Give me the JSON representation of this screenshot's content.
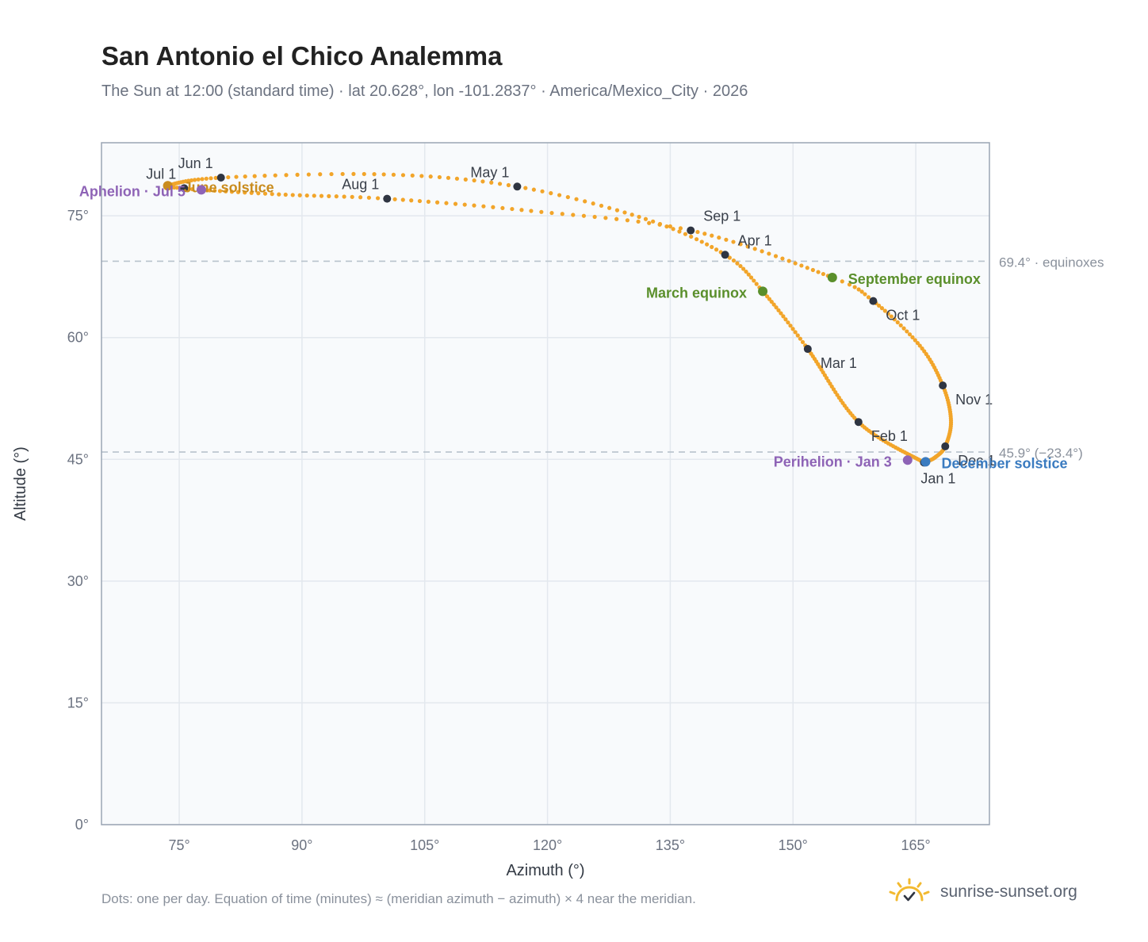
{
  "header": {
    "title": "San Antonio el Chico Analemma",
    "subtitle": "The Sun at 12:00 (standard time) · lat 20.628°, lon -101.2837° · America/Mexico_City · 2026"
  },
  "footer": {
    "note": "Dots: one per day. Equation of time (minutes) ≈ (meridian azimuth − azimuth) × 4 near the meridian.",
    "brand": "sunrise-sunset.org"
  },
  "colors": {
    "path": "#f2a52a",
    "month_dot": "#2f3542",
    "equinox": "#5a8f2b",
    "june_solstice": "#c98c1e",
    "december_solstice": "#3a7bc0",
    "apsis": "#8e63b6",
    "reference_line": "#b8c2cc",
    "grid": "#e3e8ee",
    "plot_bg": "#f8fafc",
    "frame": "#9aa5b4"
  },
  "chart_data": {
    "type": "scatter",
    "xlabel": "Azimuth (°)",
    "ylabel": "Altitude (°)",
    "xlim": [
      65.5,
      174
    ],
    "ylim": [
      0,
      84
    ],
    "xticks": [
      75,
      90,
      105,
      120,
      135,
      150,
      165
    ],
    "xtick_labels": [
      "75°",
      "90°",
      "105°",
      "120°",
      "135°",
      "150°",
      "165°"
    ],
    "yticks": [
      0,
      15,
      30,
      45,
      60,
      75
    ],
    "ytick_labels": [
      "0°",
      "15°",
      "30°",
      "45°",
      "60°",
      "75°"
    ],
    "grid": true,
    "analemma_keypoints": [
      {
        "day": 1,
        "az": 166.0,
        "alt": 44.6
      },
      {
        "day": 32,
        "az": 158.0,
        "alt": 49.6
      },
      {
        "day": 60,
        "az": 151.8,
        "alt": 58.6
      },
      {
        "day": 79,
        "az": 146.3,
        "alt": 65.7
      },
      {
        "day": 91,
        "az": 141.7,
        "alt": 70.2
      },
      {
        "day": 105,
        "az": 132.0,
        "alt": 74.6
      },
      {
        "day": 121,
        "az": 116.3,
        "alt": 78.6
      },
      {
        "day": 136,
        "az": 100.0,
        "alt": 80.1
      },
      {
        "day": 152,
        "az": 80.1,
        "alt": 79.7
      },
      {
        "day": 172,
        "az": 73.6,
        "alt": 78.7
      },
      {
        "day": 182,
        "az": 75.6,
        "alt": 78.4
      },
      {
        "day": 186,
        "az": 77.7,
        "alt": 78.2
      },
      {
        "day": 200,
        "az": 88.0,
        "alt": 77.6
      },
      {
        "day": 213,
        "az": 100.4,
        "alt": 77.1
      },
      {
        "day": 229,
        "az": 118.0,
        "alt": 75.6
      },
      {
        "day": 244,
        "az": 137.5,
        "alt": 73.2
      },
      {
        "day": 266,
        "az": 154.8,
        "alt": 67.4
      },
      {
        "day": 274,
        "az": 159.8,
        "alt": 64.5
      },
      {
        "day": 290,
        "az": 165.5,
        "alt": 59.0
      },
      {
        "day": 305,
        "az": 168.3,
        "alt": 54.1
      },
      {
        "day": 320,
        "az": 169.3,
        "alt": 49.8
      },
      {
        "day": 335,
        "az": 168.6,
        "alt": 46.6
      },
      {
        "day": 345,
        "az": 167.3,
        "alt": 45.2
      },
      {
        "day": 355,
        "az": 166.2,
        "alt": 44.7
      },
      {
        "day": 365,
        "az": 166.0,
        "alt": 44.6
      }
    ],
    "month_markers": [
      {
        "label": "Jan 1",
        "az": 166.0,
        "alt": 44.6,
        "anchor": "below"
      },
      {
        "label": "Feb 1",
        "az": 158.0,
        "alt": 49.6,
        "anchor": "below-right"
      },
      {
        "label": "Mar 1",
        "az": 151.8,
        "alt": 58.6,
        "anchor": "below-right"
      },
      {
        "label": "Apr 1",
        "az": 141.7,
        "alt": 70.2,
        "anchor": "above-right"
      },
      {
        "label": "May 1",
        "az": 116.3,
        "alt": 78.6,
        "anchor": "above-left"
      },
      {
        "label": "Jun 1",
        "az": 80.1,
        "alt": 79.7,
        "anchor": "above-left"
      },
      {
        "label": "Jul 1",
        "az": 75.6,
        "alt": 78.4,
        "anchor": "above-left"
      },
      {
        "label": "Aug 1",
        "az": 100.4,
        "alt": 77.1,
        "anchor": "above-left"
      },
      {
        "label": "Sep 1",
        "az": 137.5,
        "alt": 73.2,
        "anchor": "above-right"
      },
      {
        "label": "Oct 1",
        "az": 159.8,
        "alt": 64.5,
        "anchor": "below-right"
      },
      {
        "label": "Nov 1",
        "az": 168.3,
        "alt": 54.1,
        "anchor": "below-right"
      },
      {
        "label": "Dec 1",
        "az": 168.6,
        "alt": 46.6,
        "anchor": "below-right"
      }
    ],
    "events": [
      {
        "label": "March equinox",
        "az": 146.3,
        "alt": 65.7,
        "color_key": "equinox",
        "side": "left"
      },
      {
        "label": "September equinox",
        "az": 154.8,
        "alt": 67.4,
        "color_key": "equinox",
        "side": "right"
      },
      {
        "label": "June solstice",
        "az": 73.6,
        "alt": 78.7,
        "color_key": "june_solstice",
        "side": "right"
      },
      {
        "label": "December solstice",
        "az": 166.2,
        "alt": 44.7,
        "color_key": "december_solstice",
        "side": "right"
      },
      {
        "label": "Perihelion · Jan 3",
        "az": 164.0,
        "alt": 44.9,
        "color_key": "apsis",
        "side": "left"
      },
      {
        "label": "Aphelion · Jul 5",
        "az": 77.7,
        "alt": 78.2,
        "color_key": "apsis",
        "side": "left"
      }
    ],
    "reference_lines": [
      {
        "alt": 69.4,
        "label": "69.4° · equinoxes"
      },
      {
        "alt": 45.9,
        "label": "45.9° (−23.4°)"
      }
    ]
  }
}
